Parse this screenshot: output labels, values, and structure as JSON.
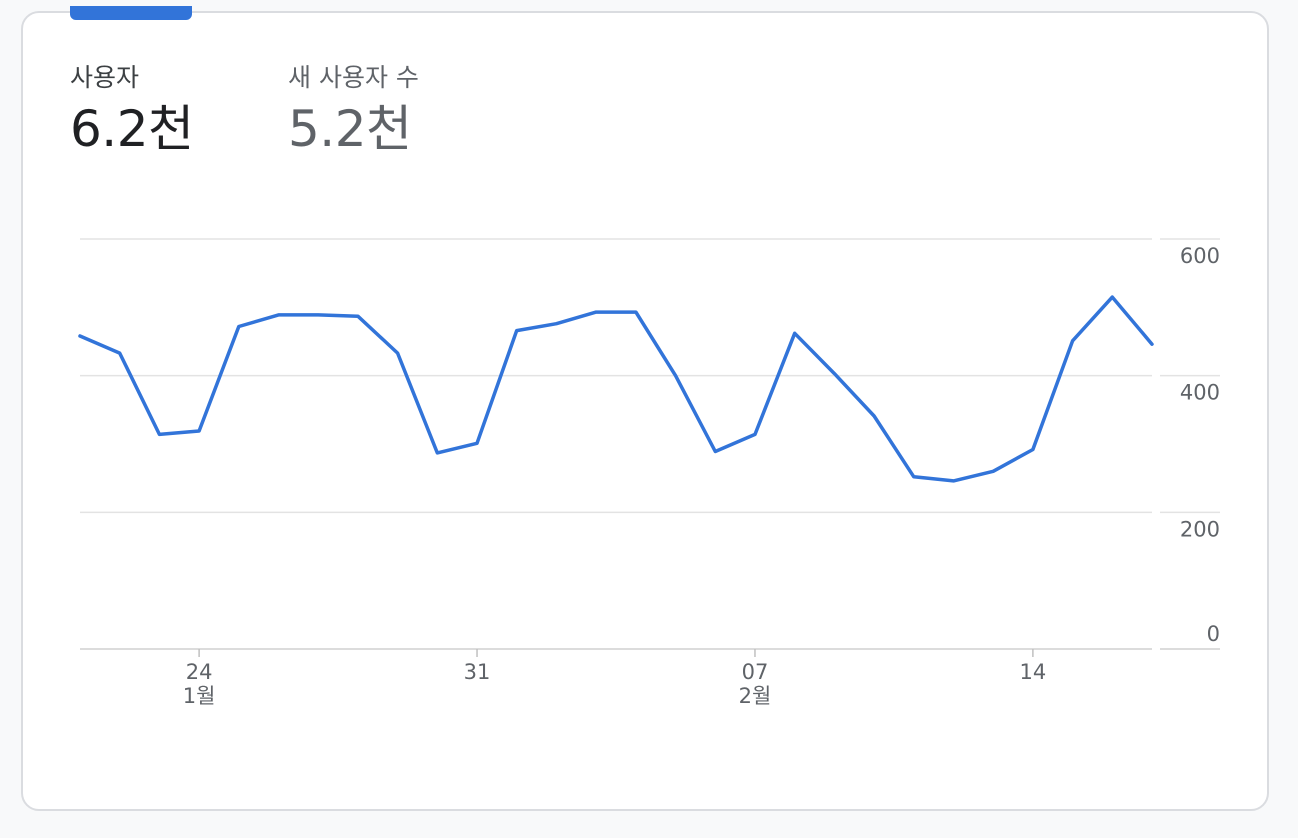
{
  "metrics": {
    "users": {
      "label": "사용자",
      "value": "6.2천"
    },
    "new_users": {
      "label": "새 사용자 수",
      "value": "5.2천"
    }
  },
  "colors": {
    "line": "#3274d9",
    "grid": "#e3e3e3",
    "tab_indicator": "#3274d9"
  },
  "chart_data": {
    "type": "line",
    "ylim": [
      0,
      600
    ],
    "y_ticks": [
      "600",
      "400",
      "200",
      "0"
    ],
    "x_ticks": [
      {
        "label": "24",
        "sublabel": "1월"
      },
      {
        "label": "31",
        "sublabel": ""
      },
      {
        "label": "07",
        "sublabel": "2월"
      },
      {
        "label": "14",
        "sublabel": ""
      }
    ],
    "x_tick_indices": [
      3,
      10,
      17,
      24
    ],
    "series": [
      {
        "values": [
          458,
          433,
          314,
          319,
          472,
          489,
          489,
          487,
          433,
          287,
          301,
          466,
          476,
          493,
          493,
          400,
          289,
          314,
          462,
          403,
          341,
          252,
          246,
          260,
          292,
          451,
          515,
          446
        ]
      }
    ],
    "grid": true
  }
}
